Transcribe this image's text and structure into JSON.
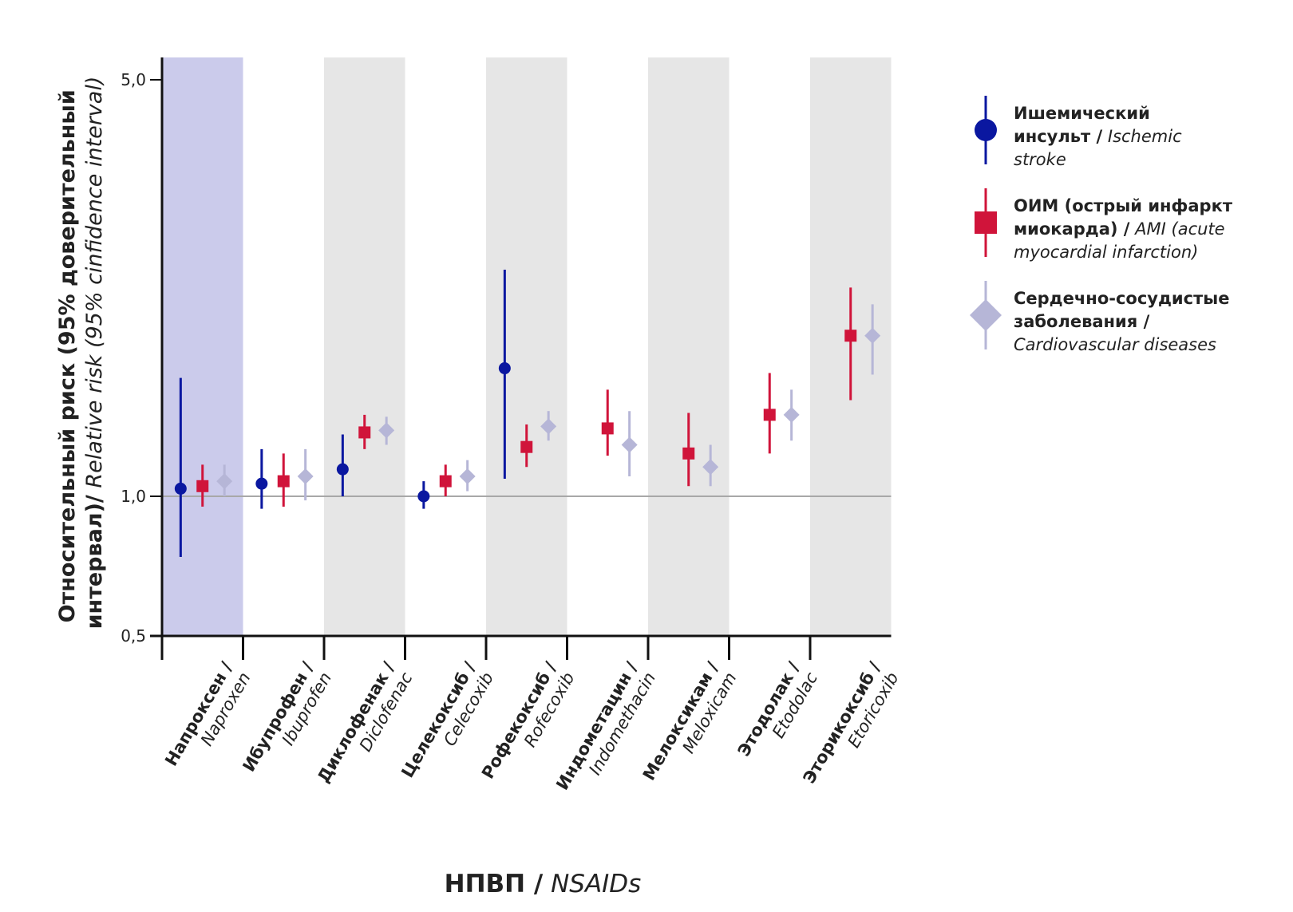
{
  "chart_data": {
    "type": "scatter",
    "subtype": "forest-plot",
    "y_scale": "log",
    "ylim": [
      0.5,
      5.0
    ],
    "y_ticks": [
      "5,0",
      "1,0",
      "0,5"
    ],
    "y_tick_values": [
      5.0,
      1.0,
      0.5
    ],
    "reference_line": 1.0,
    "ylabel_bold": "Относительный риск (95% доверительный интервал)/",
    "ylabel_italic": "Relative risk (95% cinfidence interval)",
    "xlabel_bold": "НПВП /",
    "xlabel_italic": "NSAIDs",
    "categories": [
      {
        "ru": "Напроксен /",
        "en": "Naproxen",
        "highlight": true
      },
      {
        "ru": "Ибупрофен /",
        "en": "Ibuprofen"
      },
      {
        "ru": "Диклофенак /",
        "en": "Diclofenac"
      },
      {
        "ru": "Целекоксиб /",
        "en": "Celecoxib"
      },
      {
        "ru": "Рофекоксиб /",
        "en": "Rofecoxib"
      },
      {
        "ru": "Индометацин /",
        "en": "Indomethacin"
      },
      {
        "ru": "Мелоксикам /",
        "en": "Meloxicam"
      },
      {
        "ru": "Этодолак /",
        "en": "Etodolac"
      },
      {
        "ru": "Эторикоксиб /",
        "en": "Etoricoxib"
      }
    ],
    "series": [
      {
        "name_bold": "Ишемический инсульт /",
        "name_italic": "Ischemic stroke",
        "marker": "circle",
        "color": "#0a17a0",
        "points": [
          {
            "category": 0,
            "value": 1.03,
            "low": 0.74,
            "high": 1.58
          },
          {
            "category": 1,
            "value": 1.05,
            "low": 0.94,
            "high": 1.2
          },
          {
            "category": 2,
            "value": 1.11,
            "low": 1.0,
            "high": 1.27
          },
          {
            "category": 3,
            "value": 1.0,
            "low": 0.94,
            "high": 1.06
          },
          {
            "category": 4,
            "value": 1.64,
            "low": 1.07,
            "high": 2.4
          },
          null,
          null,
          null,
          null
        ]
      },
      {
        "name_bold": "ОИМ (острый инфаркт миокарда) /",
        "name_italic": "AMI (acute myocardial infarction)",
        "marker": "square",
        "color": "#d0143a",
        "points": [
          {
            "category": 0,
            "value": 1.04,
            "low": 0.95,
            "high": 1.13
          },
          {
            "category": 1,
            "value": 1.06,
            "low": 0.95,
            "high": 1.18
          },
          {
            "category": 2,
            "value": 1.28,
            "low": 1.2,
            "high": 1.37
          },
          {
            "category": 3,
            "value": 1.06,
            "low": 1.0,
            "high": 1.13
          },
          {
            "category": 4,
            "value": 1.21,
            "low": 1.12,
            "high": 1.32
          },
          {
            "category": 5,
            "value": 1.3,
            "low": 1.17,
            "high": 1.51
          },
          {
            "category": 6,
            "value": 1.18,
            "low": 1.04,
            "high": 1.38
          },
          {
            "category": 7,
            "value": 1.37,
            "low": 1.18,
            "high": 1.61
          },
          {
            "category": 8,
            "value": 1.86,
            "low": 1.45,
            "high": 2.24
          }
        ]
      },
      {
        "name_bold": "Сердечно-сосудистые заболевания /",
        "name_italic": "Cardiovascular diseases",
        "marker": "diamond",
        "color": "#b6b6d7",
        "points": [
          {
            "category": 0,
            "value": 1.06,
            "low": 1.0,
            "high": 1.13
          },
          {
            "category": 1,
            "value": 1.08,
            "low": 0.98,
            "high": 1.2
          },
          {
            "category": 2,
            "value": 1.29,
            "low": 1.22,
            "high": 1.36
          },
          {
            "category": 3,
            "value": 1.08,
            "low": 1.02,
            "high": 1.15
          },
          {
            "category": 4,
            "value": 1.31,
            "low": 1.24,
            "high": 1.39
          },
          {
            "category": 5,
            "value": 1.22,
            "low": 1.08,
            "high": 1.39
          },
          {
            "category": 6,
            "value": 1.12,
            "low": 1.04,
            "high": 1.22
          },
          {
            "category": 7,
            "value": 1.37,
            "low": 1.24,
            "high": 1.51
          },
          {
            "category": 8,
            "value": 1.86,
            "low": 1.6,
            "high": 2.1
          }
        ]
      }
    ]
  },
  "legend": {
    "items": [
      {
        "bold_line1": "Ишемический",
        "bold_line2": "инсульт /",
        "italic_line2": "Ischemic",
        "italic_line3": "stroke"
      },
      {
        "bold_line1": "ОИМ (острый инфаркт",
        "bold_line2": "миокарда) /",
        "italic_line2": "AMI (acute",
        "italic_line3": "myocardial infarction)"
      },
      {
        "bold_line1": "Сердечно-сосудистые",
        "bold_line2": "заболевания /",
        "italic_line2": "",
        "italic_line3": "Cardiovascular diseases"
      }
    ]
  },
  "colors": {
    "highlight_band": "#cbcbeb",
    "grey_band": "#e6e6e6",
    "axis": "#111111",
    "reference_line": "#a8a8a8"
  }
}
